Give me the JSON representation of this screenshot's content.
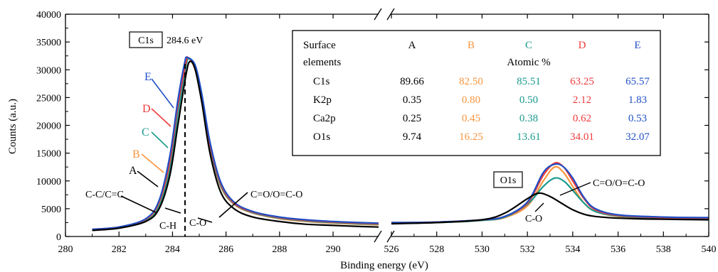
{
  "chart_data": {
    "type": "line",
    "xlabel": "Binding energy (eV)",
    "ylabel": "Counts (a.u.)",
    "ylim": [
      0,
      40000
    ],
    "yticks": [
      "0",
      "5000",
      "10000",
      "15000",
      "20000",
      "25000",
      "30000",
      "35000",
      "40000"
    ],
    "x_axis_broken": true,
    "grid": false,
    "panels": [
      {
        "label": "C1s",
        "peak_label": "284.6 eV",
        "xlim": [
          280,
          291.7
        ],
        "xticks": [
          "280",
          "282",
          "284",
          "286",
          "288",
          "290"
        ],
        "annotations": [
          "A",
          "B",
          "C",
          "D",
          "E",
          "C-C/C=C",
          "C-H",
          "C-O",
          "C=O/O=C-O"
        ]
      },
      {
        "label": "O1s",
        "xlim": [
          526,
          540
        ],
        "xticks": [
          "526",
          "528",
          "530",
          "532",
          "534",
          "536",
          "538",
          "540"
        ],
        "annotations": [
          "C=O/O=C-O",
          "C-O"
        ]
      }
    ],
    "series": [
      {
        "name": "A",
        "color": "#000000",
        "c1s": [
          [
            281.0,
            1100
          ],
          [
            282.0,
            1500
          ],
          [
            283.0,
            2700
          ],
          [
            283.5,
            5000
          ],
          [
            283.9,
            11000
          ],
          [
            284.2,
            20000
          ],
          [
            284.5,
            29000
          ],
          [
            284.65,
            31500
          ],
          [
            284.85,
            30000
          ],
          [
            285.1,
            24000
          ],
          [
            285.4,
            15000
          ],
          [
            285.8,
            8000
          ],
          [
            286.3,
            5000
          ],
          [
            287.0,
            3500
          ],
          [
            288.0,
            2700
          ],
          [
            289.0,
            2200
          ],
          [
            290.0,
            2000
          ],
          [
            291.0,
            1800
          ],
          [
            291.7,
            1700
          ]
        ],
        "o1s": [
          [
            526.0,
            2300
          ],
          [
            528.0,
            2500
          ],
          [
            530.0,
            3000
          ],
          [
            531.0,
            4200
          ],
          [
            532.0,
            6800
          ],
          [
            532.5,
            7800
          ],
          [
            533.0,
            7200
          ],
          [
            533.5,
            6000
          ],
          [
            534.0,
            4800
          ],
          [
            534.5,
            4000
          ],
          [
            535.0,
            3600
          ],
          [
            536.0,
            3300
          ],
          [
            538.0,
            3100
          ],
          [
            540.0,
            3000
          ]
        ]
      },
      {
        "name": "B",
        "color": "#f7953f",
        "c1s": [
          [
            281.0,
            1200
          ],
          [
            282.0,
            1600
          ],
          [
            283.0,
            2900
          ],
          [
            283.5,
            5600
          ],
          [
            283.9,
            12800
          ],
          [
            284.2,
            22500
          ],
          [
            284.5,
            30800
          ],
          [
            284.6,
            32000
          ],
          [
            284.85,
            30000
          ],
          [
            285.1,
            24500
          ],
          [
            285.4,
            16000
          ],
          [
            285.8,
            9000
          ],
          [
            286.3,
            5800
          ],
          [
            287.0,
            4200
          ],
          [
            288.0,
            3200
          ],
          [
            289.0,
            2700
          ],
          [
            290.0,
            2400
          ],
          [
            291.0,
            2200
          ],
          [
            291.7,
            2100
          ]
        ],
        "o1s": [
          [
            526.0,
            2400
          ],
          [
            528.0,
            2500
          ],
          [
            530.0,
            2900
          ],
          [
            531.0,
            3400
          ],
          [
            532.0,
            5500
          ],
          [
            532.7,
            10000
          ],
          [
            533.2,
            12500
          ],
          [
            533.6,
            11500
          ],
          [
            534.0,
            9000
          ],
          [
            534.5,
            6000
          ],
          [
            535.0,
            4500
          ],
          [
            536.0,
            3600
          ],
          [
            538.0,
            3200
          ],
          [
            540.0,
            3100
          ]
        ]
      },
      {
        "name": "C",
        "color": "#1a9a8e",
        "c1s": [
          [
            281.0,
            1200
          ],
          [
            282.0,
            1600
          ],
          [
            283.0,
            2800
          ],
          [
            283.5,
            5400
          ],
          [
            283.9,
            12000
          ],
          [
            284.2,
            22000
          ],
          [
            284.5,
            30500
          ],
          [
            284.62,
            32000
          ],
          [
            284.85,
            30300
          ],
          [
            285.1,
            24800
          ],
          [
            285.4,
            16200
          ],
          [
            285.8,
            9200
          ],
          [
            286.3,
            5900
          ],
          [
            287.0,
            4300
          ],
          [
            288.0,
            3300
          ],
          [
            289.0,
            2800
          ],
          [
            290.0,
            2500
          ],
          [
            291.0,
            2300
          ],
          [
            291.7,
            2200
          ]
        ],
        "o1s": [
          [
            526.0,
            2400
          ],
          [
            528.0,
            2500
          ],
          [
            530.0,
            2900
          ],
          [
            531.0,
            3500
          ],
          [
            532.0,
            5800
          ],
          [
            532.7,
            9000
          ],
          [
            533.2,
            10500
          ],
          [
            533.6,
            10000
          ],
          [
            534.0,
            8300
          ],
          [
            534.5,
            6000
          ],
          [
            535.0,
            4500
          ],
          [
            536.0,
            3700
          ],
          [
            538.0,
            3300
          ],
          [
            540.0,
            3200
          ]
        ]
      },
      {
        "name": "D",
        "color": "#ee3b3b",
        "c1s": [
          [
            281.0,
            1300
          ],
          [
            282.0,
            1700
          ],
          [
            283.0,
            3100
          ],
          [
            283.5,
            6200
          ],
          [
            283.9,
            13500
          ],
          [
            284.2,
            23500
          ],
          [
            284.5,
            31200
          ],
          [
            284.58,
            32200
          ],
          [
            284.85,
            30500
          ],
          [
            285.1,
            25000
          ],
          [
            285.4,
            16500
          ],
          [
            285.8,
            9500
          ],
          [
            286.3,
            6000
          ],
          [
            287.0,
            4400
          ],
          [
            288.0,
            3400
          ],
          [
            289.0,
            2900
          ],
          [
            290.0,
            2600
          ],
          [
            291.0,
            2400
          ],
          [
            291.7,
            2300
          ]
        ],
        "o1s": [
          [
            526.0,
            2500
          ],
          [
            528.0,
            2600
          ],
          [
            530.0,
            3000
          ],
          [
            531.0,
            3600
          ],
          [
            532.0,
            6000
          ],
          [
            532.7,
            11000
          ],
          [
            533.2,
            13200
          ],
          [
            533.6,
            12500
          ],
          [
            534.0,
            10000
          ],
          [
            534.5,
            6800
          ],
          [
            535.0,
            4800
          ],
          [
            536.0,
            3800
          ],
          [
            538.0,
            3400
          ],
          [
            540.0,
            3300
          ]
        ]
      },
      {
        "name": "E",
        "color": "#1f4fc4",
        "c1s": [
          [
            281.0,
            1300
          ],
          [
            282.0,
            1700
          ],
          [
            283.0,
            3200
          ],
          [
            283.5,
            6500
          ],
          [
            283.9,
            14500
          ],
          [
            284.2,
            24500
          ],
          [
            284.45,
            31200
          ],
          [
            284.55,
            32200
          ],
          [
            284.85,
            30800
          ],
          [
            285.1,
            25500
          ],
          [
            285.4,
            17000
          ],
          [
            285.8,
            9800
          ],
          [
            286.3,
            6200
          ],
          [
            287.0,
            4500
          ],
          [
            288.0,
            3500
          ],
          [
            289.0,
            3000
          ],
          [
            290.0,
            2700
          ],
          [
            291.0,
            2500
          ],
          [
            291.7,
            2400
          ]
        ],
        "o1s": [
          [
            526.0,
            2500
          ],
          [
            528.0,
            2600
          ],
          [
            530.0,
            3000
          ],
          [
            531.0,
            3600
          ],
          [
            532.0,
            6200
          ],
          [
            532.7,
            11500
          ],
          [
            533.2,
            13000
          ],
          [
            533.6,
            12500
          ],
          [
            534.0,
            10500
          ],
          [
            534.5,
            7000
          ],
          [
            535.0,
            5000
          ],
          [
            536.0,
            3900
          ],
          [
            538.0,
            3500
          ],
          [
            540.0,
            3400
          ]
        ]
      }
    ],
    "table": {
      "header": [
        "Surface",
        "A",
        "B",
        "C",
        "D",
        "E"
      ],
      "header2": [
        "elements",
        "Atomic %"
      ],
      "rows": [
        [
          "C1s",
          "89.66",
          "82.50",
          "85.51",
          "63.25",
          "65.57"
        ],
        [
          "K2p",
          "0.35",
          "0.80",
          "0.50",
          "2.12",
          "1.83"
        ],
        [
          "Ca2p",
          "0.25",
          "0.45",
          "0.38",
          "0.62",
          "0.53"
        ],
        [
          "O1s",
          "9.74",
          "16.25",
          "13.61",
          "34.01",
          "32.07"
        ]
      ]
    }
  }
}
